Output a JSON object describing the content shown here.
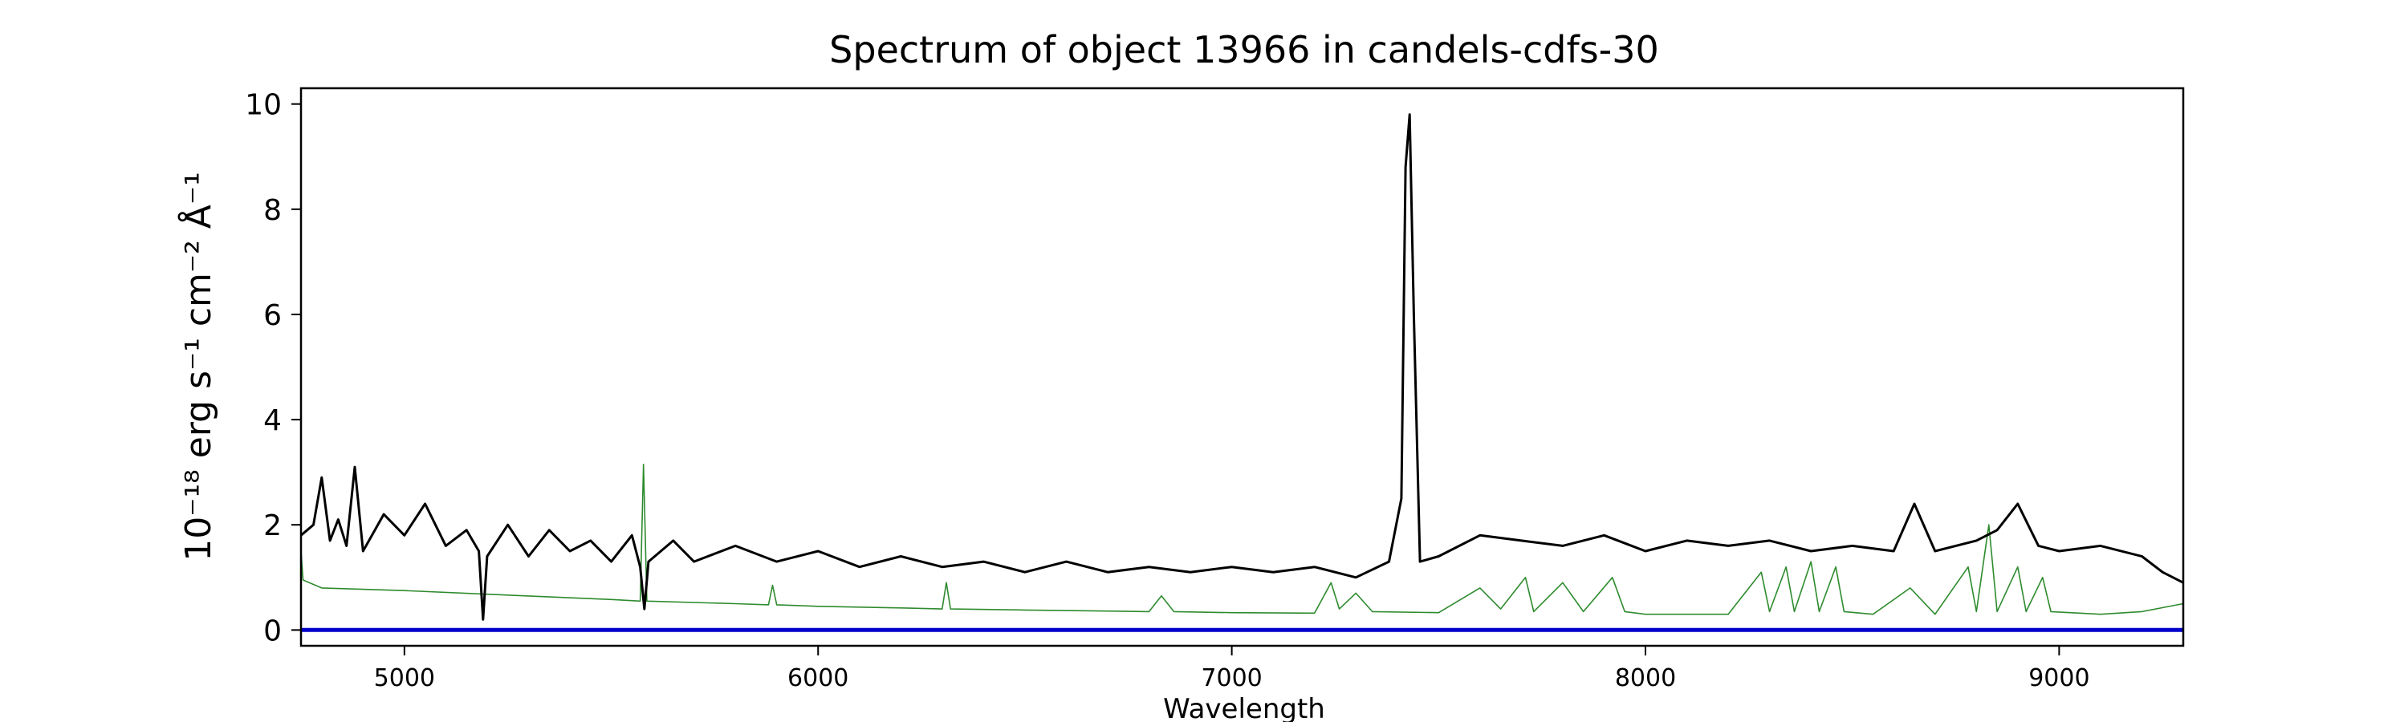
{
  "chart_data": {
    "type": "line",
    "title": "Spectrum of object 13966 in candels-cdfs-30",
    "xlabel": "Wavelength",
    "ylabel": "10⁻¹⁸ erg s⁻¹ cm⁻² Å⁻¹",
    "xlim": [
      4750,
      9300
    ],
    "ylim": [
      -0.3,
      10.3
    ],
    "x_ticks": [
      5000,
      6000,
      7000,
      8000,
      9000
    ],
    "y_ticks": [
      0,
      2,
      4,
      6,
      8,
      10
    ],
    "grid": false,
    "legend": "none",
    "series": [
      {
        "role": "flux",
        "color": "#000000",
        "points": [
          [
            4750,
            1.8
          ],
          [
            4780,
            2.0
          ],
          [
            4800,
            2.9
          ],
          [
            4820,
            1.7
          ],
          [
            4840,
            2.1
          ],
          [
            4860,
            1.6
          ],
          [
            4880,
            3.1
          ],
          [
            4900,
            1.5
          ],
          [
            4950,
            2.2
          ],
          [
            5000,
            1.8
          ],
          [
            5050,
            2.4
          ],
          [
            5100,
            1.6
          ],
          [
            5150,
            1.9
          ],
          [
            5180,
            1.5
          ],
          [
            5190,
            0.2
          ],
          [
            5200,
            1.4
          ],
          [
            5250,
            2.0
          ],
          [
            5300,
            1.4
          ],
          [
            5350,
            1.9
          ],
          [
            5400,
            1.5
          ],
          [
            5450,
            1.7
          ],
          [
            5500,
            1.3
          ],
          [
            5550,
            1.8
          ],
          [
            5570,
            1.2
          ],
          [
            5580,
            0.4
          ],
          [
            5590,
            1.3
          ],
          [
            5650,
            1.7
          ],
          [
            5700,
            1.3
          ],
          [
            5800,
            1.6
          ],
          [
            5900,
            1.3
          ],
          [
            6000,
            1.5
          ],
          [
            6100,
            1.2
          ],
          [
            6200,
            1.4
          ],
          [
            6300,
            1.2
          ],
          [
            6400,
            1.3
          ],
          [
            6500,
            1.1
          ],
          [
            6600,
            1.3
          ],
          [
            6700,
            1.1
          ],
          [
            6800,
            1.2
          ],
          [
            6900,
            1.1
          ],
          [
            7000,
            1.2
          ],
          [
            7100,
            1.1
          ],
          [
            7200,
            1.2
          ],
          [
            7300,
            1.0
          ],
          [
            7380,
            1.3
          ],
          [
            7410,
            2.5
          ],
          [
            7420,
            8.8
          ],
          [
            7430,
            9.8
          ],
          [
            7440,
            6.0
          ],
          [
            7455,
            1.3
          ],
          [
            7500,
            1.4
          ],
          [
            7600,
            1.8
          ],
          [
            7700,
            1.7
          ],
          [
            7800,
            1.6
          ],
          [
            7900,
            1.8
          ],
          [
            8000,
            1.5
          ],
          [
            8100,
            1.7
          ],
          [
            8200,
            1.6
          ],
          [
            8300,
            1.7
          ],
          [
            8400,
            1.5
          ],
          [
            8500,
            1.6
          ],
          [
            8600,
            1.5
          ],
          [
            8650,
            2.4
          ],
          [
            8700,
            1.5
          ],
          [
            8800,
            1.7
          ],
          [
            8850,
            1.9
          ],
          [
            8900,
            2.4
          ],
          [
            8950,
            1.6
          ],
          [
            9000,
            1.5
          ],
          [
            9100,
            1.6
          ],
          [
            9200,
            1.4
          ],
          [
            9250,
            1.1
          ],
          [
            9300,
            0.9
          ]
        ]
      },
      {
        "role": "noise",
        "color": "#2e8b2e",
        "points": [
          [
            4750,
            1.5
          ],
          [
            4755,
            0.95
          ],
          [
            4800,
            0.8
          ],
          [
            5000,
            0.75
          ],
          [
            5200,
            0.68
          ],
          [
            5500,
            0.58
          ],
          [
            5570,
            0.55
          ],
          [
            5578,
            3.15
          ],
          [
            5586,
            0.55
          ],
          [
            5800,
            0.5
          ],
          [
            5880,
            0.48
          ],
          [
            5890,
            0.85
          ],
          [
            5900,
            0.48
          ],
          [
            6000,
            0.45
          ],
          [
            6200,
            0.42
          ],
          [
            6300,
            0.4
          ],
          [
            6310,
            0.9
          ],
          [
            6320,
            0.4
          ],
          [
            6500,
            0.38
          ],
          [
            6800,
            0.35
          ],
          [
            6830,
            0.65
          ],
          [
            6860,
            0.35
          ],
          [
            7000,
            0.33
          ],
          [
            7200,
            0.32
          ],
          [
            7240,
            0.9
          ],
          [
            7260,
            0.4
          ],
          [
            7300,
            0.7
          ],
          [
            7340,
            0.35
          ],
          [
            7500,
            0.33
          ],
          [
            7600,
            0.8
          ],
          [
            7650,
            0.4
          ],
          [
            7710,
            1.0
          ],
          [
            7730,
            0.35
          ],
          [
            7800,
            0.9
          ],
          [
            7850,
            0.35
          ],
          [
            7920,
            1.0
          ],
          [
            7950,
            0.35
          ],
          [
            8000,
            0.3
          ],
          [
            8200,
            0.3
          ],
          [
            8280,
            1.1
          ],
          [
            8300,
            0.35
          ],
          [
            8340,
            1.2
          ],
          [
            8360,
            0.35
          ],
          [
            8400,
            1.3
          ],
          [
            8420,
            0.35
          ],
          [
            8460,
            1.2
          ],
          [
            8480,
            0.35
          ],
          [
            8550,
            0.3
          ],
          [
            8640,
            0.8
          ],
          [
            8700,
            0.3
          ],
          [
            8780,
            1.2
          ],
          [
            8800,
            0.35
          ],
          [
            8830,
            2.0
          ],
          [
            8850,
            0.35
          ],
          [
            8900,
            1.2
          ],
          [
            8920,
            0.35
          ],
          [
            8960,
            1.0
          ],
          [
            8980,
            0.35
          ],
          [
            9100,
            0.3
          ],
          [
            9200,
            0.35
          ],
          [
            9300,
            0.5
          ]
        ]
      },
      {
        "role": "zero-line",
        "color": "#0000cc",
        "points": [
          [
            4750,
            0.0
          ],
          [
            9300,
            0.0
          ]
        ]
      }
    ]
  }
}
